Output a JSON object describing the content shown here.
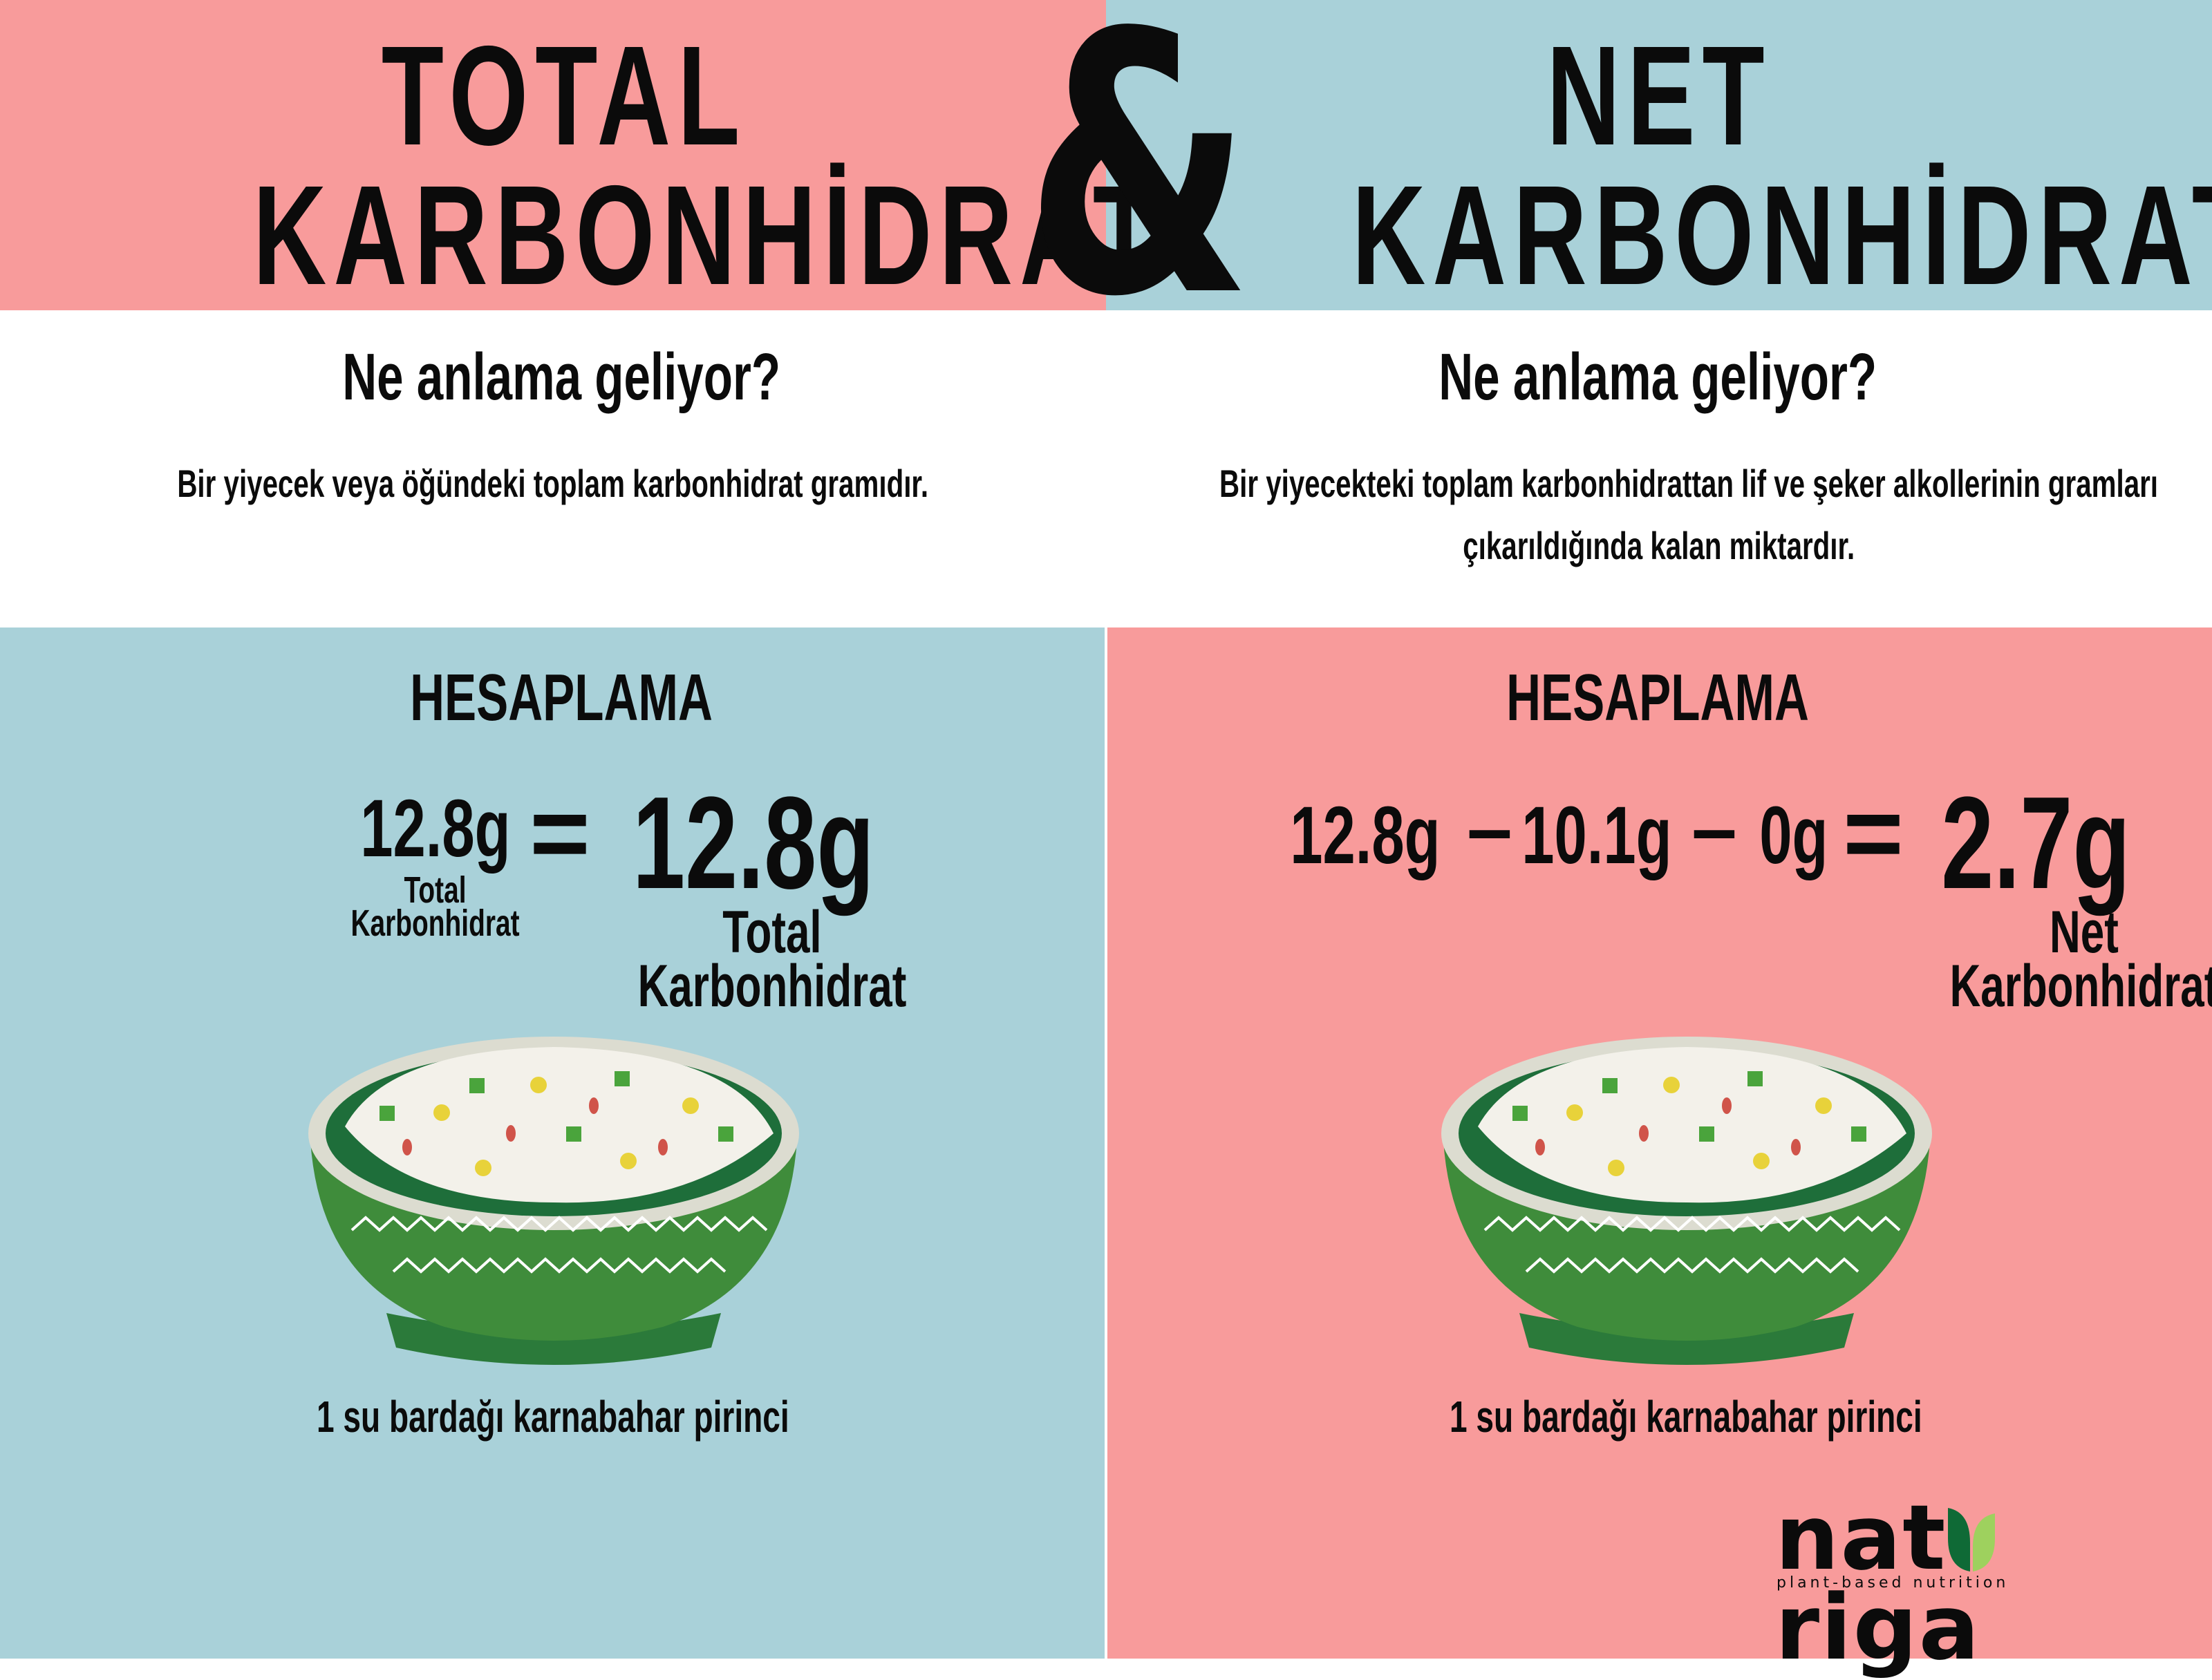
{
  "colors": {
    "pink": "#f89b9b",
    "blue": "#a9d1d9",
    "bowl_green": "#3e8a3a",
    "text": "#0b0b0b"
  },
  "header": {
    "left_line1": "TOTAL",
    "left_line2": "KARBONHİDRAT",
    "ampersand": "&",
    "right_line1": "NET",
    "right_line2": "KARBONHİDRAT"
  },
  "definitions": {
    "left": {
      "question": "Ne anlama geliyor?",
      "text": "Bir yiyecek veya öğündeki toplam karbonhidrat gramıdır."
    },
    "right": {
      "question": "Ne anlama geliyor?",
      "text_line1": "Bir yiyecekteki toplam karbonhidrattan lif ve şeker alkollerinin gramları",
      "text_line2": "çıkarıldığında kalan miktardır."
    }
  },
  "left_panel": {
    "heading": "HESAPLAMA",
    "input_value": "12.8g",
    "input_label_1": "Total",
    "input_label_2": "Karbonhidrat",
    "equals": "=",
    "result_value": "12.8g",
    "result_label_1": "Total",
    "result_label_2": "Karbonhidrat",
    "caption": "1 su bardağı karnabahar pirinci"
  },
  "right_panel": {
    "heading": "HESAPLAMA",
    "term1": "12.8g",
    "minus1": "–",
    "term2": "10.1g",
    "minus2": "–",
    "term3": "0g",
    "equals": "=",
    "result_value": "2.7g",
    "result_label_1": "Net",
    "result_label_2": "Karbonhidrat",
    "caption": "1 su bardağı karnabahar pirinci"
  },
  "logo": {
    "name": "naturiga",
    "tagline": "plant-based nutrition"
  }
}
